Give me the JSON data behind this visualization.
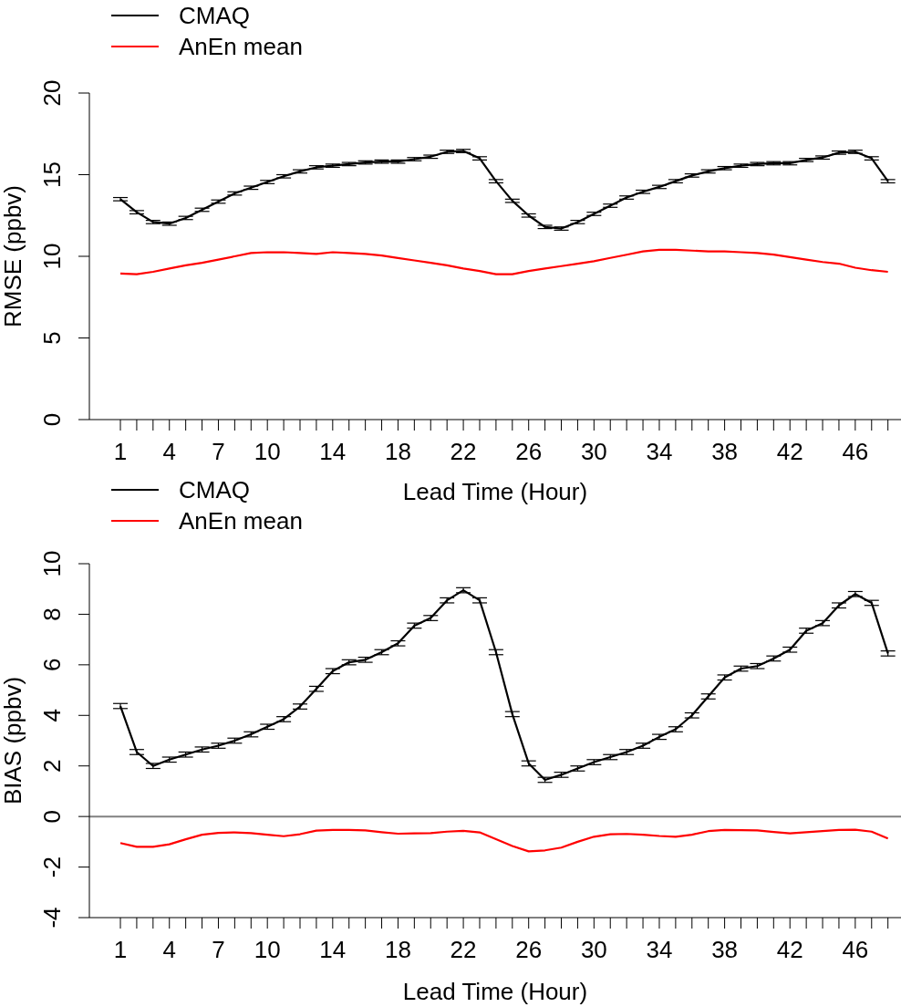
{
  "chart_data": [
    {
      "type": "line",
      "xlabel": "Lead Time (Hour)",
      "ylabel": "RMSE (ppbv)",
      "legend": "top left",
      "marker": "none",
      "x": [
        1,
        2,
        3,
        4,
        5,
        6,
        7,
        8,
        9,
        10,
        11,
        12,
        13,
        14,
        15,
        16,
        17,
        18,
        19,
        20,
        21,
        22,
        23,
        24,
        25,
        26,
        27,
        28,
        29,
        30,
        31,
        32,
        33,
        34,
        35,
        36,
        37,
        38,
        39,
        40,
        41,
        42,
        43,
        44,
        45,
        46,
        47,
        48
      ],
      "xlim": [
        -0.9,
        48.8
      ],
      "xticks": [
        1,
        {
          "value": 2,
          "label": null
        },
        {
          "value": 3,
          "label": null
        },
        4,
        {
          "value": 5,
          "label": null
        },
        {
          "value": 6,
          "label": null
        },
        7,
        {
          "value": 8,
          "label": null
        },
        {
          "value": 9,
          "label": null
        },
        10,
        {
          "value": 11,
          "label": null
        },
        {
          "value": 12,
          "label": null
        },
        {
          "value": 13,
          "label": null
        },
        14,
        {
          "value": 15,
          "label": null
        },
        {
          "value": 16,
          "label": null
        },
        {
          "value": 17,
          "label": null
        },
        18,
        {
          "value": 19,
          "label": null
        },
        {
          "value": 20,
          "label": null
        },
        {
          "value": 21,
          "label": null
        },
        22,
        {
          "value": 23,
          "label": null
        },
        {
          "value": 24,
          "label": null
        },
        {
          "value": 25,
          "label": null
        },
        26,
        {
          "value": 27,
          "label": null
        },
        {
          "value": 28,
          "label": null
        },
        {
          "value": 29,
          "label": null
        },
        30,
        {
          "value": 31,
          "label": null
        },
        {
          "value": 32,
          "label": null
        },
        {
          "value": 33,
          "label": null
        },
        34,
        {
          "value": 35,
          "label": null
        },
        {
          "value": 36,
          "label": null
        },
        {
          "value": 37,
          "label": null
        },
        38,
        {
          "value": 39,
          "label": null
        },
        {
          "value": 40,
          "label": null
        },
        {
          "value": 41,
          "label": null
        },
        42,
        {
          "value": 43,
          "label": null
        },
        {
          "value": 44,
          "label": null
        },
        {
          "value": 45,
          "label": null
        },
        46,
        {
          "value": 47,
          "label": null
        },
        {
          "value": 48,
          "label": null
        }
      ],
      "ylim": [
        0,
        20
      ],
      "yticks": [
        0,
        5,
        10,
        15,
        20
      ],
      "series": [
        {
          "name": "CMAQ",
          "color": "#000000",
          "values": [
            13.5,
            12.7,
            12.1,
            12.0,
            12.35,
            12.85,
            13.35,
            13.85,
            14.2,
            14.55,
            14.9,
            15.2,
            15.45,
            15.55,
            15.65,
            15.75,
            15.8,
            15.8,
            15.95,
            16.1,
            16.4,
            16.45,
            16.0,
            14.6,
            13.4,
            12.5,
            11.8,
            11.7,
            12.1,
            12.6,
            13.1,
            13.6,
            13.95,
            14.25,
            14.6,
            14.95,
            15.2,
            15.4,
            15.55,
            15.65,
            15.7,
            15.7,
            15.9,
            16.05,
            16.35,
            16.4,
            16.0,
            14.6
          ],
          "errors": [
            0.1,
            0.1,
            0.1,
            0.1,
            0.1,
            0.1,
            0.1,
            0.1,
            0.1,
            0.1,
            0.1,
            0.1,
            0.1,
            0.1,
            0.1,
            0.1,
            0.1,
            0.1,
            0.1,
            0.1,
            0.1,
            0.1,
            0.1,
            0.1,
            0.1,
            0.1,
            0.1,
            0.1,
            0.1,
            0.1,
            0.1,
            0.1,
            0.1,
            0.1,
            0.1,
            0.1,
            0.1,
            0.1,
            0.1,
            0.1,
            0.1,
            0.1,
            0.1,
            0.1,
            0.1,
            0.1,
            0.1,
            0.1
          ]
        },
        {
          "name": "AnEn mean",
          "color": "#ff0000",
          "values": [
            8.95,
            8.9,
            9.05,
            9.25,
            9.45,
            9.6,
            9.8,
            10.0,
            10.2,
            10.25,
            10.25,
            10.2,
            10.15,
            10.25,
            10.2,
            10.15,
            10.05,
            9.9,
            9.75,
            9.6,
            9.45,
            9.25,
            9.1,
            8.9,
            8.9,
            9.1,
            9.25,
            9.4,
            9.55,
            9.7,
            9.9,
            10.1,
            10.3,
            10.4,
            10.4,
            10.35,
            10.3,
            10.3,
            10.25,
            10.2,
            10.1,
            9.95,
            9.8,
            9.65,
            9.55,
            9.3,
            9.15,
            9.05
          ]
        }
      ]
    },
    {
      "type": "line",
      "xlabel": "Lead Time (Hour)",
      "ylabel": "BIAS (ppbv)",
      "legend": "top left",
      "marker": "none",
      "x": [
        1,
        2,
        3,
        4,
        5,
        6,
        7,
        8,
        9,
        10,
        11,
        12,
        13,
        14,
        15,
        16,
        17,
        18,
        19,
        20,
        21,
        22,
        23,
        24,
        25,
        26,
        27,
        28,
        29,
        30,
        31,
        32,
        33,
        34,
        35,
        36,
        37,
        38,
        39,
        40,
        41,
        42,
        43,
        44,
        45,
        46,
        47,
        48
      ],
      "xlim": [
        -0.9,
        48.8
      ],
      "xticks": [
        1,
        {
          "value": 2,
          "label": null
        },
        {
          "value": 3,
          "label": null
        },
        4,
        {
          "value": 5,
          "label": null
        },
        {
          "value": 6,
          "label": null
        },
        7,
        {
          "value": 8,
          "label": null
        },
        {
          "value": 9,
          "label": null
        },
        10,
        {
          "value": 11,
          "label": null
        },
        {
          "value": 12,
          "label": null
        },
        {
          "value": 13,
          "label": null
        },
        14,
        {
          "value": 15,
          "label": null
        },
        {
          "value": 16,
          "label": null
        },
        {
          "value": 17,
          "label": null
        },
        18,
        {
          "value": 19,
          "label": null
        },
        {
          "value": 20,
          "label": null
        },
        {
          "value": 21,
          "label": null
        },
        22,
        {
          "value": 23,
          "label": null
        },
        {
          "value": 24,
          "label": null
        },
        {
          "value": 25,
          "label": null
        },
        26,
        {
          "value": 27,
          "label": null
        },
        {
          "value": 28,
          "label": null
        },
        {
          "value": 29,
          "label": null
        },
        30,
        {
          "value": 31,
          "label": null
        },
        {
          "value": 32,
          "label": null
        },
        {
          "value": 33,
          "label": null
        },
        34,
        {
          "value": 35,
          "label": null
        },
        {
          "value": 36,
          "label": null
        },
        {
          "value": 37,
          "label": null
        },
        38,
        {
          "value": 39,
          "label": null
        },
        {
          "value": 40,
          "label": null
        },
        {
          "value": 41,
          "label": null
        },
        42,
        {
          "value": 43,
          "label": null
        },
        {
          "value": 44,
          "label": null
        },
        {
          "value": 45,
          "label": null
        },
        46,
        {
          "value": 47,
          "label": null
        },
        {
          "value": 48,
          "label": null
        }
      ],
      "ylim": [
        -4,
        10
      ],
      "yticks": [
        -4,
        -2,
        0,
        2,
        4,
        6,
        8,
        10
      ],
      "ref_lines": [
        {
          "axis": "y",
          "value": 0,
          "color": "#808080"
        }
      ],
      "series": [
        {
          "name": "CMAQ",
          "color": "#000000",
          "values": [
            4.37,
            2.55,
            2.0,
            2.25,
            2.45,
            2.65,
            2.8,
            3.0,
            3.25,
            3.55,
            3.85,
            4.35,
            5.05,
            5.75,
            6.1,
            6.2,
            6.5,
            6.85,
            7.55,
            7.85,
            8.55,
            8.95,
            8.55,
            6.5,
            4.05,
            2.1,
            1.45,
            1.65,
            1.9,
            2.15,
            2.35,
            2.55,
            2.8,
            3.15,
            3.45,
            4.0,
            4.75,
            5.5,
            5.85,
            5.95,
            6.25,
            6.6,
            7.35,
            7.65,
            8.35,
            8.8,
            8.45,
            6.45
          ],
          "errors": [
            0.1,
            0.1,
            0.1,
            0.1,
            0.1,
            0.1,
            0.1,
            0.1,
            0.1,
            0.1,
            0.1,
            0.1,
            0.1,
            0.1,
            0.1,
            0.1,
            0.1,
            0.1,
            0.1,
            0.1,
            0.1,
            0.1,
            0.1,
            0.1,
            0.1,
            0.1,
            0.1,
            0.1,
            0.1,
            0.1,
            0.1,
            0.1,
            0.1,
            0.1,
            0.1,
            0.1,
            0.1,
            0.1,
            0.1,
            0.1,
            0.1,
            0.1,
            0.1,
            0.1,
            0.1,
            0.1,
            0.1,
            0.1
          ]
        },
        {
          "name": "AnEn mean",
          "color": "#ff0000",
          "values": [
            -1.05,
            -1.2,
            -1.2,
            -1.1,
            -0.9,
            -0.72,
            -0.65,
            -0.63,
            -0.66,
            -0.72,
            -0.78,
            -0.7,
            -0.56,
            -0.53,
            -0.53,
            -0.55,
            -0.62,
            -0.68,
            -0.67,
            -0.66,
            -0.6,
            -0.57,
            -0.63,
            -0.9,
            -1.17,
            -1.38,
            -1.34,
            -1.23,
            -1.0,
            -0.8,
            -0.7,
            -0.69,
            -0.72,
            -0.77,
            -0.8,
            -0.72,
            -0.58,
            -0.53,
            -0.54,
            -0.55,
            -0.61,
            -0.67,
            -0.62,
            -0.58,
            -0.53,
            -0.52,
            -0.6,
            -0.87
          ]
        }
      ]
    }
  ]
}
